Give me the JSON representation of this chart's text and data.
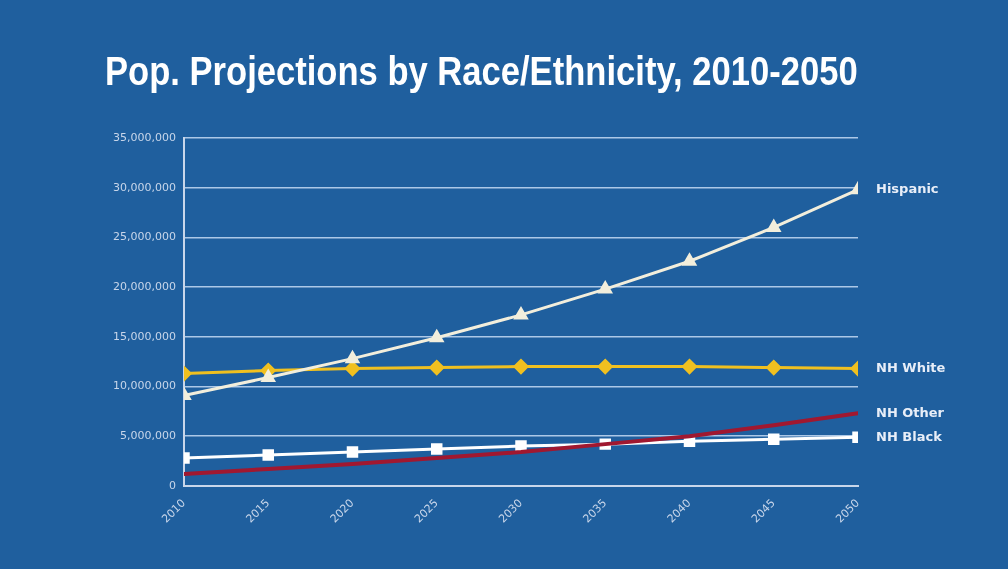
{
  "chart_data": {
    "type": "line",
    "title": "Pop. Projections by Race/Ethnicity, 2010-2050",
    "x": [
      2010,
      2015,
      2020,
      2025,
      2030,
      2035,
      2040,
      2045,
      2050
    ],
    "series": [
      {
        "name": "Hispanic",
        "color": "#f2eedc",
        "marker": "triangle",
        "values": [
          9100000,
          10900000,
          12800000,
          14900000,
          17200000,
          19800000,
          22600000,
          26000000,
          29800000
        ]
      },
      {
        "name": "NH White",
        "color": "#f0c020",
        "marker": "diamond",
        "values": [
          11300000,
          11600000,
          11800000,
          11900000,
          12000000,
          12000000,
          12000000,
          11900000,
          11800000
        ]
      },
      {
        "name": "NH Other",
        "color": "#a01830",
        "marker": "none",
        "values": [
          1200000,
          1700000,
          2200000,
          2800000,
          3400000,
          4200000,
          5000000,
          6100000,
          7300000
        ]
      },
      {
        "name": "NH Black",
        "color": "#ffffff",
        "marker": "square",
        "values": [
          2800000,
          3100000,
          3400000,
          3700000,
          4000000,
          4200000,
          4500000,
          4700000,
          4900000
        ]
      }
    ],
    "xlim": [
      2010,
      2050
    ],
    "xticks": [
      2010,
      2015,
      2020,
      2025,
      2030,
      2035,
      2040,
      2045,
      2050
    ],
    "ylim": [
      0,
      35000000
    ],
    "yticks": [
      {
        "value": 0,
        "label": "0"
      },
      {
        "value": 5000000,
        "label": "5,000,000"
      },
      {
        "value": 10000000,
        "label": "10,000,000"
      },
      {
        "value": 15000000,
        "label": "15,000,000"
      },
      {
        "value": 20000000,
        "label": "20,000,000"
      },
      {
        "value": 25000000,
        "label": "25,000,000"
      },
      {
        "value": 30000000,
        "label": "30,000,000"
      },
      {
        "value": 35000000,
        "label": "35,000,000"
      }
    ],
    "grid": "y",
    "legend": false
  }
}
